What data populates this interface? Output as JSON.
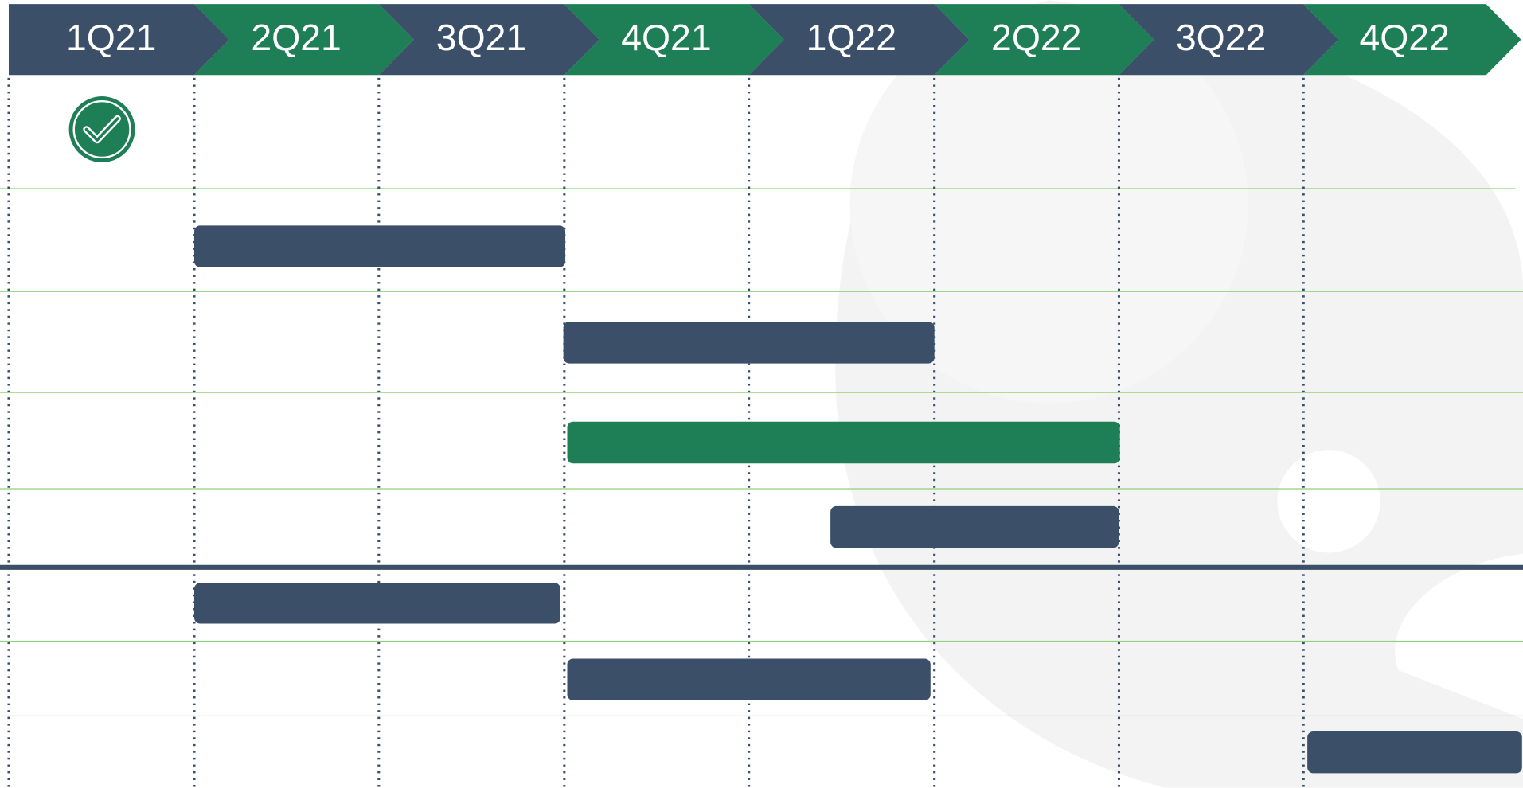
{
  "header": {
    "quarters": [
      "1Q21",
      "2Q21",
      "3Q21",
      "4Q21",
      "1Q22",
      "2Q22",
      "3Q22",
      "4Q22"
    ]
  }
}
